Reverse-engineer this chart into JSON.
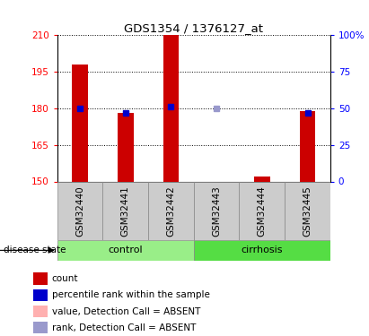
{
  "title": "GDS1354 / 1376127_at",
  "samples": [
    "GSM32440",
    "GSM32441",
    "GSM32442",
    "GSM32443",
    "GSM32444",
    "GSM32445"
  ],
  "ylim_left": [
    150,
    210
  ],
  "ylim_right": [
    0,
    100
  ],
  "yticks_left": [
    150,
    165,
    180,
    195,
    210
  ],
  "yticks_right": [
    0,
    25,
    50,
    75,
    100
  ],
  "bar_values": [
    198,
    178,
    210,
    150,
    152,
    179
  ],
  "bar_absent": [
    false,
    false,
    false,
    true,
    false,
    false
  ],
  "bar_color_normal": "#cc0000",
  "bar_color_absent": "#ffb0b0",
  "bar_bottom": 150,
  "bar_width": 0.35,
  "rank_values": [
    50,
    47,
    51,
    50,
    null,
    47
  ],
  "rank_absent": [
    false,
    false,
    false,
    true,
    false,
    false
  ],
  "rank_color_normal": "#0000cc",
  "rank_color_absent": "#9999cc",
  "rank_marker_size": 5,
  "group_labels": [
    "control",
    "cirrhosis"
  ],
  "group_ranges": [
    [
      0,
      3
    ],
    [
      3,
      6
    ]
  ],
  "group_color_control": "#99ee88",
  "group_color_cirrhosis": "#55dd44",
  "gray_box_color": "#cccccc",
  "legend_labels": [
    "count",
    "percentile rank within the sample",
    "value, Detection Call = ABSENT",
    "rank, Detection Call = ABSENT"
  ],
  "legend_colors": [
    "#cc0000",
    "#0000cc",
    "#ffb0b0",
    "#9999cc"
  ],
  "disease_state_label": "disease state"
}
